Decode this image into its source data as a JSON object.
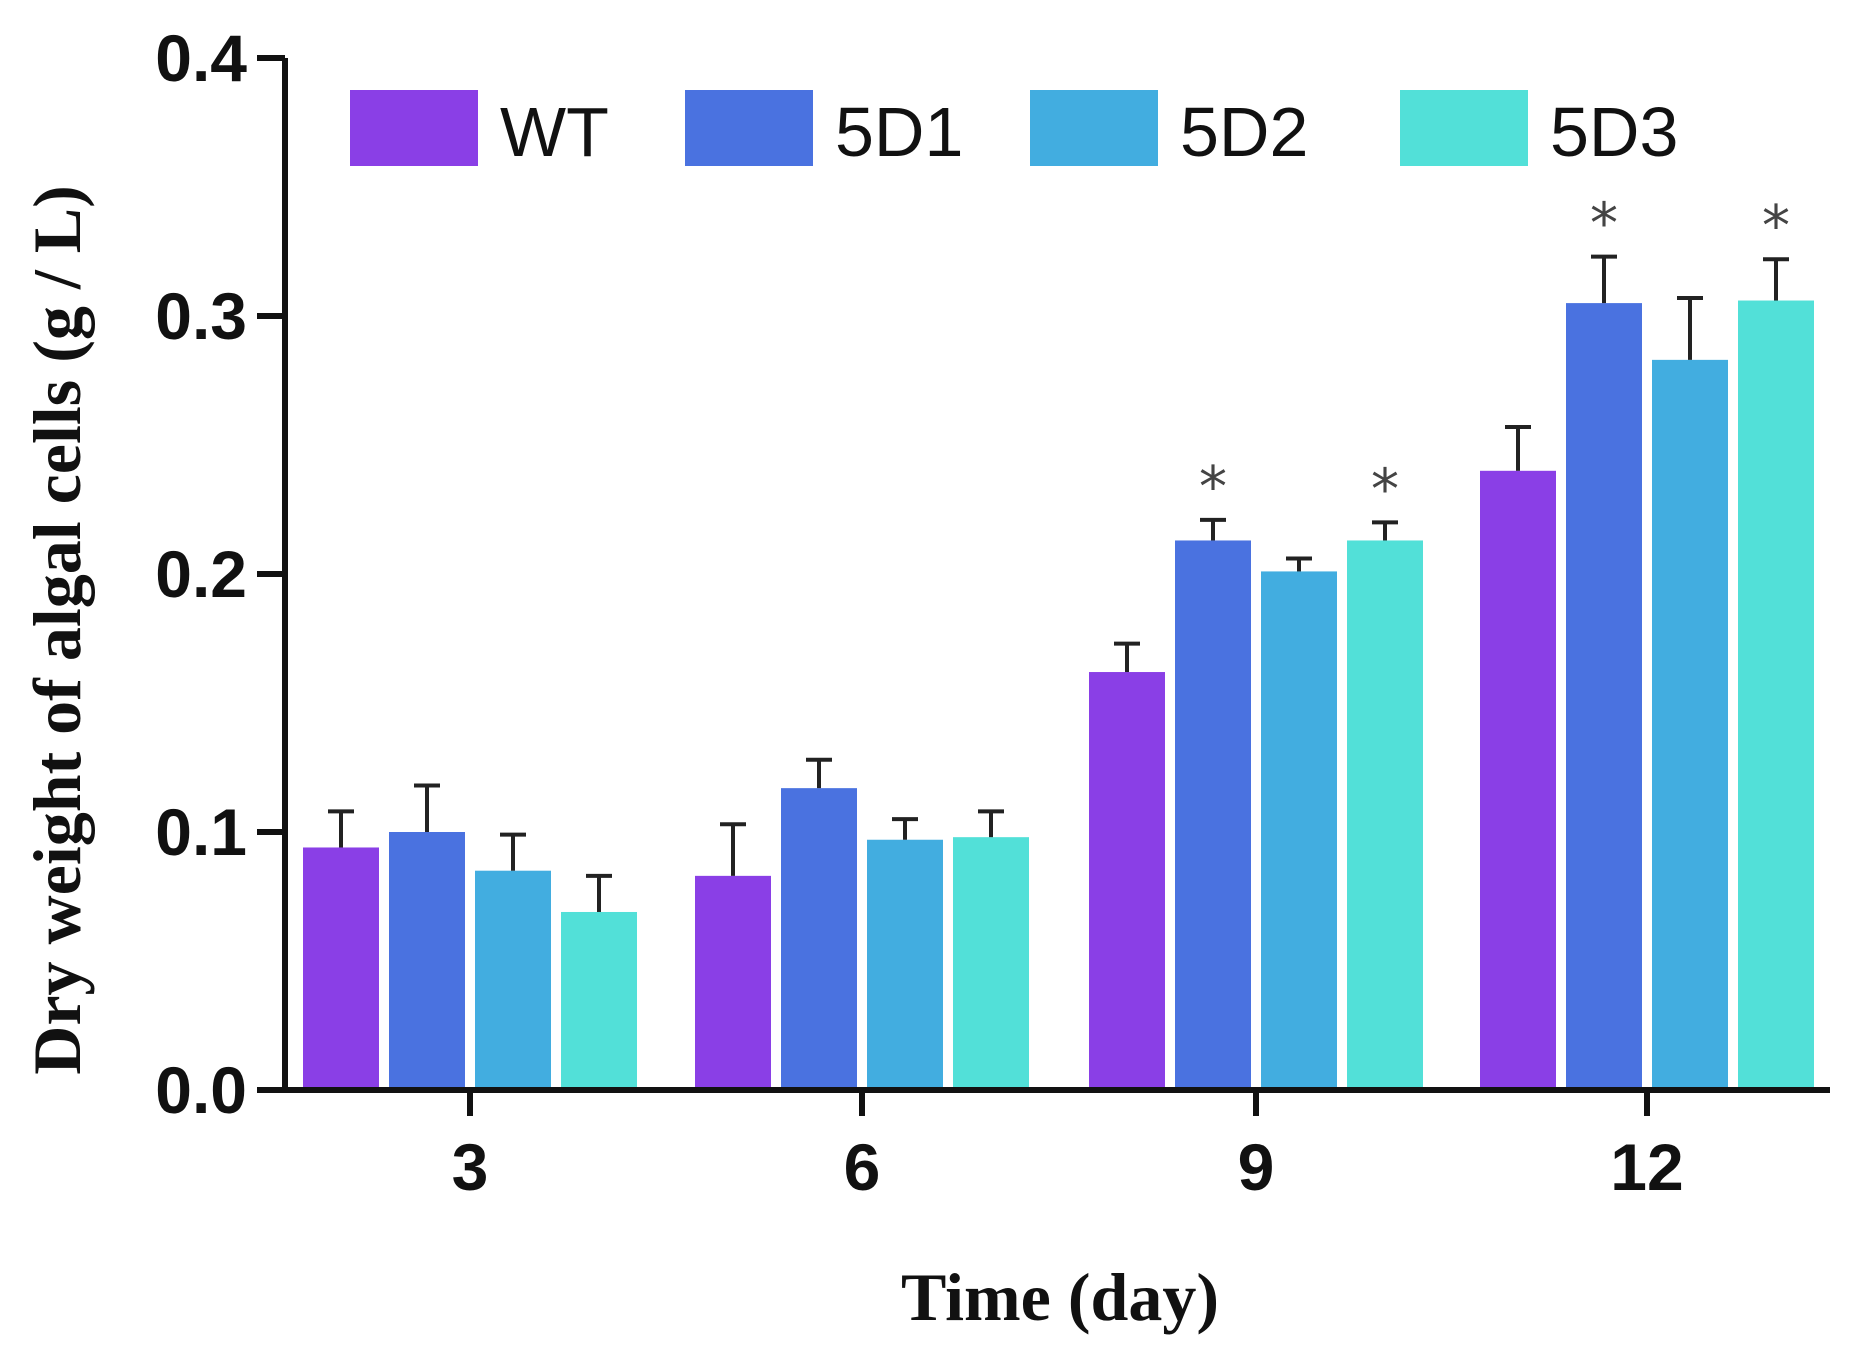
{
  "chart_data": {
    "type": "bar",
    "title": "",
    "xlabel": "Time (day)",
    "ylabel": "Dry weight of algal cells (g / L)",
    "ylim": [
      0,
      0.4
    ],
    "yticks": [
      "0.0",
      "0.1",
      "0.2",
      "0.3",
      "0.4"
    ],
    "ytick_values": [
      0,
      0.1,
      0.2,
      0.3,
      0.4
    ],
    "categories": [
      "3",
      "6",
      "9",
      "12"
    ],
    "legend_position": "top",
    "series": [
      {
        "name": "WT",
        "color": "#8a3fe6",
        "values": [
          0.094,
          0.083,
          0.162,
          0.24
        ],
        "errors": [
          0.014,
          0.02,
          0.011,
          0.017
        ],
        "sig": [
          "",
          "",
          "",
          ""
        ]
      },
      {
        "name": "5D1",
        "color": "#4a72e0",
        "values": [
          0.1,
          0.117,
          0.213,
          0.305
        ],
        "errors": [
          0.018,
          0.011,
          0.008,
          0.018
        ],
        "sig": [
          "",
          "",
          "*",
          "*"
        ]
      },
      {
        "name": "5D2",
        "color": "#42ade0",
        "values": [
          0.085,
          0.097,
          0.201,
          0.283
        ],
        "errors": [
          0.014,
          0.008,
          0.005,
          0.024
        ],
        "sig": [
          "",
          "",
          "",
          ""
        ]
      },
      {
        "name": "5D3",
        "color": "#52e0d8",
        "values": [
          0.069,
          0.098,
          0.213,
          0.306
        ],
        "errors": [
          0.014,
          0.01,
          0.007,
          0.016
        ],
        "sig": [
          "",
          "",
          "*",
          "*"
        ]
      }
    ]
  }
}
